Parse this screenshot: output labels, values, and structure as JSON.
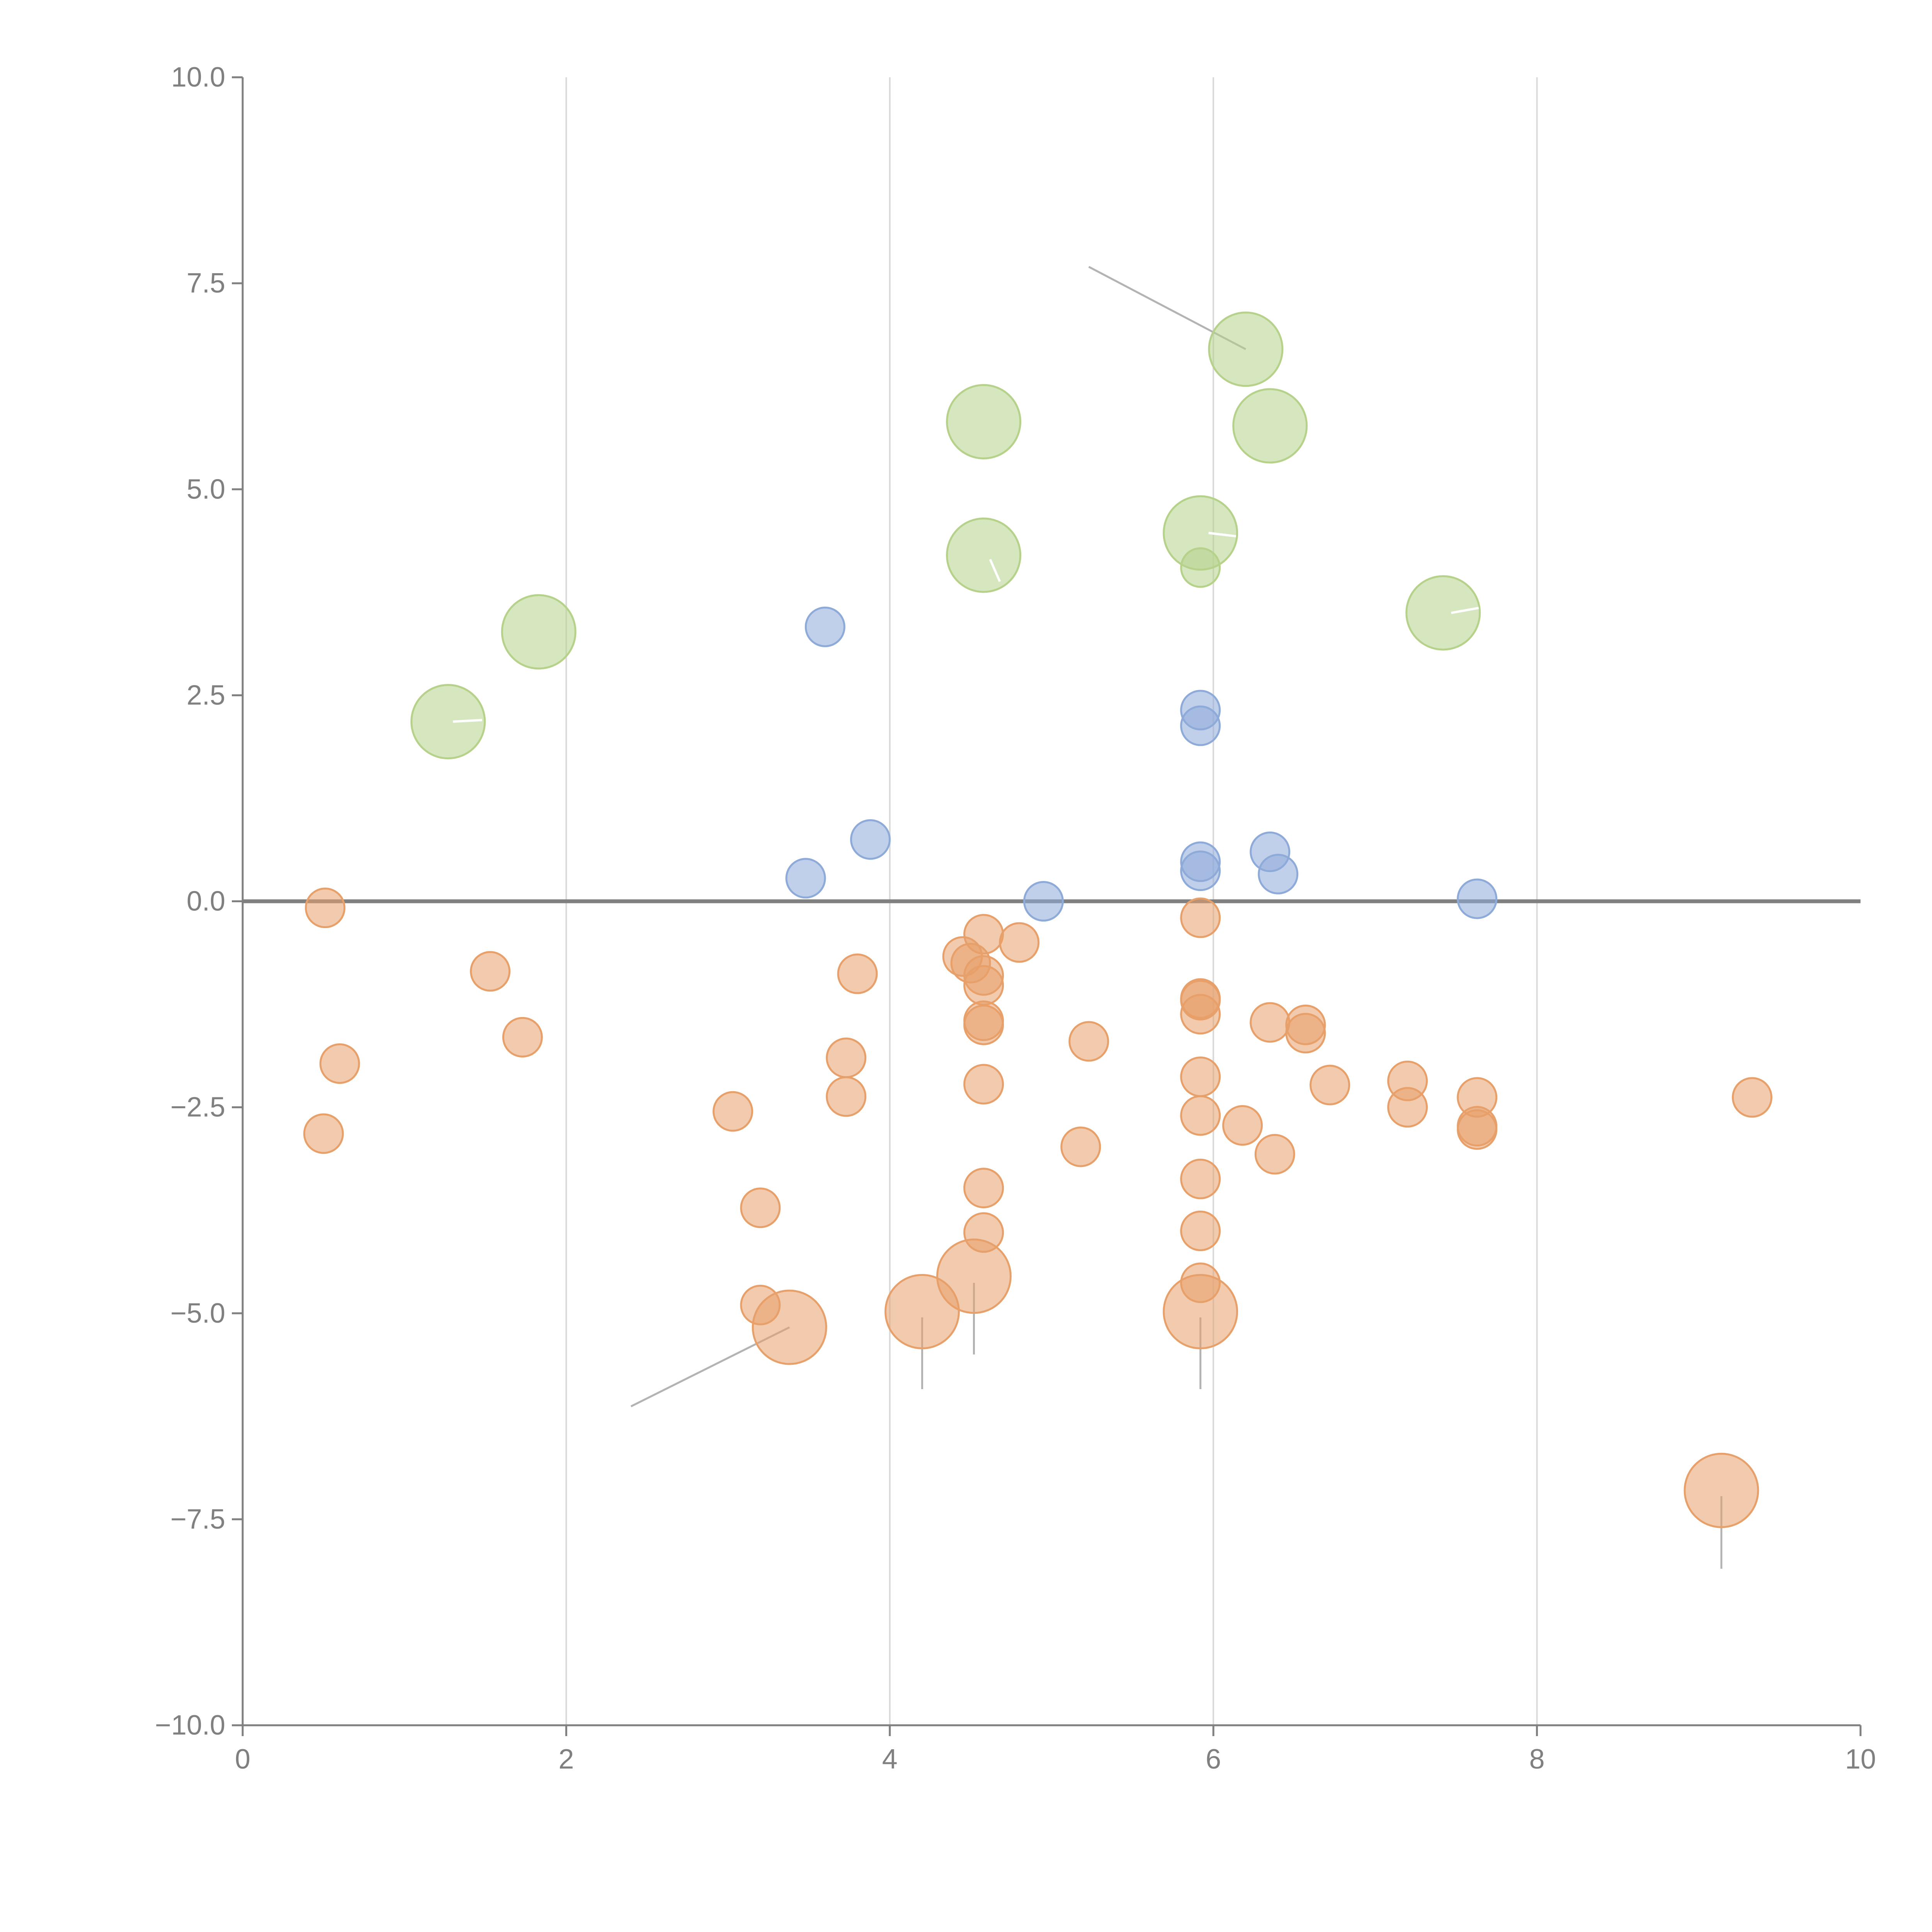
{
  "chart_data": {
    "type": "scatter",
    "title": "",
    "xlabel": "",
    "ylabel": "",
    "xlim": [
      0,
      10
    ],
    "ylim": [
      -10,
      10
    ],
    "x_ticks": [
      0,
      2,
      4,
      6,
      8,
      10
    ],
    "y_ticks": [
      -10,
      -7.5,
      -5,
      -2.5,
      0,
      2.5,
      5,
      7.5,
      10
    ],
    "x_tick_labels": [
      "0",
      "2",
      "4",
      "6",
      "8",
      "10"
    ],
    "y_tick_labels": [
      "−10.0",
      "−7.5",
      "−5.0",
      "−2.5",
      "0.0",
      "2.5",
      "5.0",
      "7.5",
      "10.0"
    ],
    "grid": "vertical",
    "reference_line_y": 0,
    "colors": {
      "green": "#b5d18a",
      "blue": "#8eaad8",
      "orange": "#e8a06b",
      "axis": "#808080",
      "grid": "#d9d9d9",
      "leader": "#b3b3b3"
    },
    "series": [
      {
        "name": "green",
        "color": "#b5d18a",
        "points": [
          {
            "x": 6.2,
            "y": 6.7,
            "size": "large"
          },
          {
            "x": 6.35,
            "y": 5.77,
            "size": "large"
          },
          {
            "x": 4.58,
            "y": 5.82,
            "size": "large"
          },
          {
            "x": 5.92,
            "y": 4.47,
            "size": "large"
          },
          {
            "x": 5.92,
            "y": 4.05,
            "size": "small"
          },
          {
            "x": 4.58,
            "y": 4.2,
            "size": "large"
          },
          {
            "x": 7.42,
            "y": 3.5,
            "size": "large"
          },
          {
            "x": 1.83,
            "y": 3.27,
            "size": "large"
          },
          {
            "x": 1.27,
            "y": 2.18,
            "size": "large"
          }
        ]
      },
      {
        "name": "blue",
        "color": "#8eaad8",
        "points": [
          {
            "x": 3.6,
            "y": 3.33,
            "size": "small"
          },
          {
            "x": 5.92,
            "y": 2.32,
            "size": "small"
          },
          {
            "x": 5.92,
            "y": 2.13,
            "size": "small"
          },
          {
            "x": 3.88,
            "y": 0.75,
            "size": "small"
          },
          {
            "x": 6.35,
            "y": 0.6,
            "size": "small"
          },
          {
            "x": 5.92,
            "y": 0.48,
            "size": "small"
          },
          {
            "x": 5.92,
            "y": 0.37,
            "size": "small"
          },
          {
            "x": 6.4,
            "y": 0.33,
            "size": "small"
          },
          {
            "x": 3.48,
            "y": 0.28,
            "size": "small"
          },
          {
            "x": 4.95,
            "y": 0.0,
            "size": "small"
          },
          {
            "x": 7.63,
            "y": 0.03,
            "size": "small"
          }
        ]
      },
      {
        "name": "orange",
        "color": "#e8a06b",
        "points": [
          {
            "x": 0.51,
            "y": -0.08,
            "size": "small"
          },
          {
            "x": 1.53,
            "y": -0.85,
            "size": "small"
          },
          {
            "x": 1.73,
            "y": -1.65,
            "size": "small"
          },
          {
            "x": 0.6,
            "y": -1.97,
            "size": "small"
          },
          {
            "x": 0.5,
            "y": -2.82,
            "size": "small"
          },
          {
            "x": 3.03,
            "y": -2.55,
            "size": "small"
          },
          {
            "x": 3.2,
            "y": -3.72,
            "size": "small"
          },
          {
            "x": 3.2,
            "y": -4.9,
            "size": "small"
          },
          {
            "x": 3.38,
            "y": -5.17,
            "size": "large"
          },
          {
            "x": 3.73,
            "y": -1.9,
            "size": "small"
          },
          {
            "x": 3.73,
            "y": -2.37,
            "size": "small"
          },
          {
            "x": 3.8,
            "y": -0.88,
            "size": "small"
          },
          {
            "x": 4.2,
            "y": -4.98,
            "size": "large"
          },
          {
            "x": 4.45,
            "y": -0.67,
            "size": "small"
          },
          {
            "x": 4.5,
            "y": -0.75,
            "size": "small"
          },
          {
            "x": 4.52,
            "y": -4.55,
            "size": "large"
          },
          {
            "x": 4.58,
            "y": -0.4,
            "size": "small"
          },
          {
            "x": 4.58,
            "y": -0.9,
            "size": "small"
          },
          {
            "x": 4.58,
            "y": -1.02,
            "size": "small"
          },
          {
            "x": 4.58,
            "y": -1.45,
            "size": "small"
          },
          {
            "x": 4.58,
            "y": -1.5,
            "size": "small"
          },
          {
            "x": 4.58,
            "y": -2.22,
            "size": "small"
          },
          {
            "x": 4.58,
            "y": -3.48,
            "size": "small"
          },
          {
            "x": 4.58,
            "y": -4.02,
            "size": "small"
          },
          {
            "x": 4.8,
            "y": -0.5,
            "size": "small"
          },
          {
            "x": 5.18,
            "y": -2.98,
            "size": "small"
          },
          {
            "x": 5.23,
            "y": -1.7,
            "size": "small"
          },
          {
            "x": 5.92,
            "y": -0.2,
            "size": "small"
          },
          {
            "x": 5.92,
            "y": -1.18,
            "size": "small"
          },
          {
            "x": 5.92,
            "y": -1.2,
            "size": "small"
          },
          {
            "x": 5.92,
            "y": -1.37,
            "size": "small"
          },
          {
            "x": 5.92,
            "y": -2.13,
            "size": "small"
          },
          {
            "x": 5.92,
            "y": -2.6,
            "size": "small"
          },
          {
            "x": 5.92,
            "y": -3.37,
            "size": "small"
          },
          {
            "x": 5.92,
            "y": -4.0,
            "size": "small"
          },
          {
            "x": 5.92,
            "y": -4.63,
            "size": "small"
          },
          {
            "x": 5.92,
            "y": -4.98,
            "size": "large"
          },
          {
            "x": 6.18,
            "y": -2.72,
            "size": "small"
          },
          {
            "x": 6.35,
            "y": -1.47,
            "size": "small"
          },
          {
            "x": 6.38,
            "y": -3.07,
            "size": "small"
          },
          {
            "x": 6.57,
            "y": -1.5,
            "size": "small"
          },
          {
            "x": 6.57,
            "y": -1.6,
            "size": "small"
          },
          {
            "x": 6.72,
            "y": -2.23,
            "size": "small"
          },
          {
            "x": 7.2,
            "y": -2.18,
            "size": "small"
          },
          {
            "x": 7.2,
            "y": -2.5,
            "size": "small"
          },
          {
            "x": 7.63,
            "y": -2.38,
            "size": "small"
          },
          {
            "x": 7.63,
            "y": -2.73,
            "size": "small"
          },
          {
            "x": 7.63,
            "y": -2.77,
            "size": "small"
          },
          {
            "x": 9.14,
            "y": -7.15,
            "size": "large"
          },
          {
            "x": 9.33,
            "y": -2.38,
            "size": "small"
          }
        ]
      }
    ],
    "annotation_leaders": [
      {
        "from": [
          6.2,
          6.7
        ],
        "to": [
          5.23,
          7.7
        ],
        "color": "#b3b3b3"
      },
      {
        "from": [
          3.38,
          -5.17
        ],
        "to": [
          2.4,
          -6.13
        ],
        "color": "#b3b3b3"
      },
      {
        "from": [
          4.2,
          -5.05
        ],
        "to": [
          4.2,
          -5.92
        ],
        "color": "#b3b3b3"
      },
      {
        "from": [
          4.52,
          -4.63
        ],
        "to": [
          4.52,
          -5.5
        ],
        "color": "#b3b3b3"
      },
      {
        "from": [
          5.92,
          -5.05
        ],
        "to": [
          5.92,
          -5.92
        ],
        "color": "#b3b3b3"
      },
      {
        "from": [
          9.14,
          -7.22
        ],
        "to": [
          9.14,
          -8.1
        ],
        "color": "#b3b3b3"
      },
      {
        "from": [
          1.3,
          2.18
        ],
        "to": [
          1.48,
          2.2
        ],
        "color": "#ffffff"
      },
      {
        "from": [
          5.97,
          4.47
        ],
        "to": [
          6.14,
          4.43
        ],
        "color": "#ffffff"
      },
      {
        "from": [
          4.62,
          4.15
        ],
        "to": [
          4.68,
          3.88
        ],
        "color": "#ffffff"
      },
      {
        "from": [
          7.47,
          3.5
        ],
        "to": [
          7.64,
          3.56
        ],
        "color": "#ffffff"
      }
    ]
  }
}
